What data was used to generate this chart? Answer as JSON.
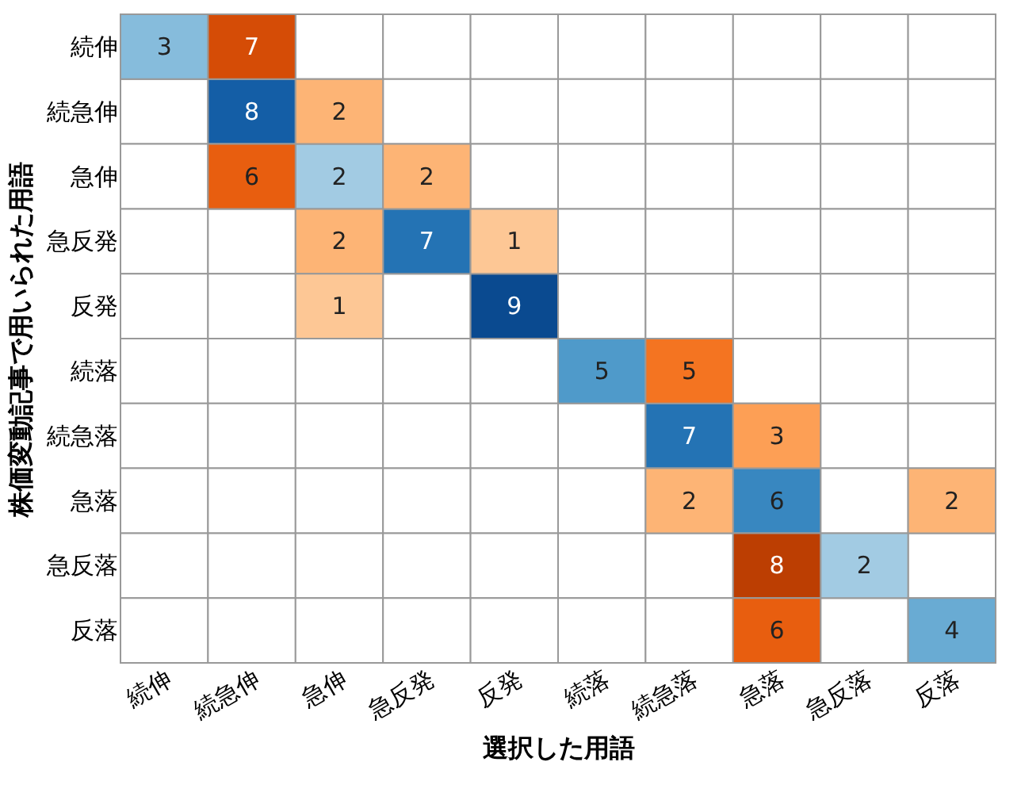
{
  "chart_data": {
    "type": "heatmap",
    "xlabel": "選択した用語",
    "ylabel": "株価変動記事で用いられた用語",
    "data_labels": true,
    "categories": [
      "続伸",
      "続急伸",
      "急伸",
      "急反発",
      "反発",
      "続落",
      "続急落",
      "急落",
      "急反落",
      "反落"
    ],
    "y_categories": [
      "続伸",
      "続急伸",
      "急伸",
      "急反発",
      "反発",
      "続落",
      "続急落",
      "急落",
      "急反落",
      "反落"
    ],
    "cells": [
      [
        3,
        7,
        null,
        null,
        null,
        null,
        null,
        null,
        null,
        null
      ],
      [
        null,
        8,
        2,
        null,
        null,
        null,
        null,
        null,
        null,
        null
      ],
      [
        null,
        6,
        2,
        2,
        null,
        null,
        null,
        null,
        null,
        null
      ],
      [
        null,
        null,
        2,
        7,
        1,
        null,
        null,
        null,
        null,
        null
      ],
      [
        null,
        null,
        1,
        null,
        9,
        null,
        null,
        null,
        null,
        null
      ],
      [
        null,
        null,
        null,
        null,
        null,
        5,
        5,
        null,
        null,
        null
      ],
      [
        null,
        null,
        null,
        null,
        null,
        null,
        7,
        3,
        null,
        null
      ],
      [
        null,
        null,
        null,
        null,
        null,
        null,
        2,
        6,
        null,
        2
      ],
      [
        null,
        null,
        null,
        null,
        null,
        null,
        null,
        8,
        2,
        null
      ],
      [
        null,
        null,
        null,
        null,
        null,
        null,
        null,
        6,
        null,
        4
      ]
    ]
  }
}
